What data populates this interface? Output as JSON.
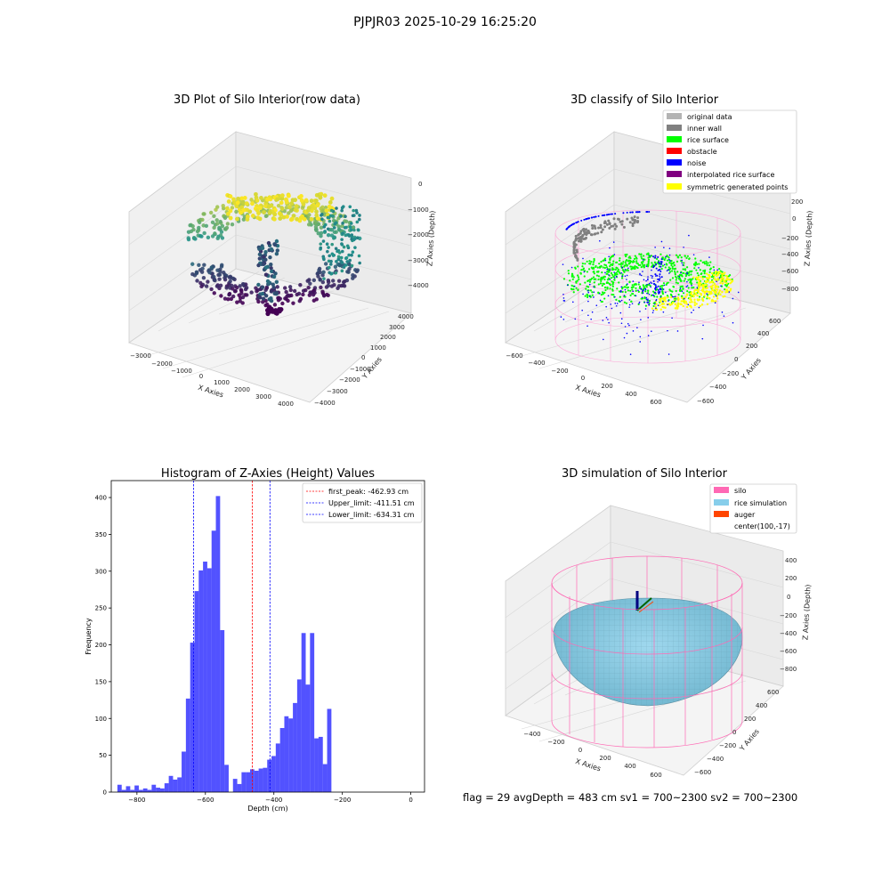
{
  "suptitle": "PJPJR03 2025-10-29 16:25:20",
  "footer": {
    "text": "flag = 29  avgDepth = 483 cm  sv1 = 700~2300  sv2 = 700~2300"
  },
  "colors": {
    "raw_low": "#440154",
    "raw_mid": "#21918c",
    "raw_high": "#fde725",
    "original_data": "#b3b3b3",
    "inner_wall": "#808080",
    "rice_surface": "#00ff00",
    "obstacle": "#ff0000",
    "noise": "#0000ff",
    "interpolated_rice_surface": "#800080",
    "symmetric_generated_points": "#ffff00",
    "silo": "#ff69b4",
    "rice_simulation": "#87ceeb",
    "auger": "#ff4500",
    "hist_bar": "#0000ff",
    "first_peak_line": "#ff0000",
    "limit_line": "#0000ff"
  },
  "chart_data": [
    {
      "type": "scatter",
      "projection": "3d",
      "title": "3D Plot of Silo Interior(row data)",
      "xlabel": "X Axies",
      "ylabel": "Y Axies",
      "zlabel": "Z Axies (Depth)",
      "xticks": [
        "−3000",
        "−2000",
        "−1000",
        "0",
        "1000",
        "2000",
        "3000",
        "4000"
      ],
      "yticks": [
        "−4000",
        "−3000",
        "−2000",
        "−1000",
        "0",
        "1000",
        "2000",
        "3000",
        "4000"
      ],
      "zticks": [
        "0",
        "−1000",
        "−2000",
        "−3000",
        "−4000"
      ],
      "colormap": "viridis by depth",
      "grid": true
    },
    {
      "type": "scatter",
      "projection": "3d",
      "title": "3D classify of Silo Interior",
      "xlabel": "X Axies",
      "ylabel": "Y Axies",
      "zlabel": "Z Axies (Depth)",
      "xticks": [
        "−600",
        "−400",
        "−200",
        "0",
        "200",
        "400",
        "600"
      ],
      "yticks": [
        "−600",
        "−400",
        "−200",
        "0",
        "200",
        "400",
        "600"
      ],
      "zticks": [
        "200",
        "0",
        "−200",
        "−400",
        "−600",
        "−800"
      ],
      "legend": [
        "original data",
        "inner wall",
        "rice surface",
        "obstacle",
        "noise",
        "interpolated rice surface",
        "symmetric generated points"
      ],
      "legend_position": "upper-right",
      "grid": true
    },
    {
      "type": "bar",
      "title": "Histogram of Z-Axies (Height) Values",
      "xlabel": "Depth (cm)",
      "ylabel": "Frequency",
      "xticks": [
        "−800",
        "−600",
        "−400",
        "−200",
        "0"
      ],
      "yticks": [
        "0",
        "50",
        "100",
        "150",
        "200",
        "250",
        "300",
        "350",
        "400"
      ],
      "xlim": [
        -875,
        40
      ],
      "ylim": [
        0,
        423
      ],
      "bin_width": 12.5,
      "bins_start": -857,
      "values": [
        10,
        3,
        8,
        3,
        9,
        3,
        5,
        3,
        10,
        6,
        5,
        12,
        22,
        17,
        20,
        55,
        127,
        203,
        273,
        301,
        313,
        304,
        355,
        402,
        220,
        37,
        0,
        18,
        11,
        27,
        27,
        31,
        29,
        32,
        33,
        44,
        49,
        66,
        87,
        103,
        100,
        121,
        153,
        216,
        146,
        216,
        73,
        75,
        38,
        113
      ],
      "lines": [
        {
          "name": "first_peak: -462.93 cm",
          "x": -462.93,
          "style": "dashed"
        },
        {
          "name": "Upper_limit: -411.51 cm",
          "x": -411.51,
          "style": "dashed"
        },
        {
          "name": "Lower_limit: -634.31 cm",
          "x": -634.31,
          "style": "dashed"
        }
      ],
      "legend_position": "upper-right",
      "grid": false
    },
    {
      "type": "surface",
      "projection": "3d",
      "title": "3D simulation of Silo Interior",
      "xlabel": "X Axies",
      "ylabel": "Y Axies",
      "zlabel": "Z Axies (Depth)",
      "xticks": [
        "−400",
        "−200",
        "0",
        "200",
        "400",
        "600"
      ],
      "yticks": [
        "−600",
        "−400",
        "−200",
        "0",
        "200",
        "400",
        "600"
      ],
      "zticks": [
        "400",
        "200",
        "0",
        "−200",
        "−400",
        "−600",
        "−800"
      ],
      "legend": [
        "silo",
        "rice simulation",
        "auger",
        "center(100,-17)"
      ],
      "legend_position": "upper-right",
      "grid": true
    }
  ]
}
